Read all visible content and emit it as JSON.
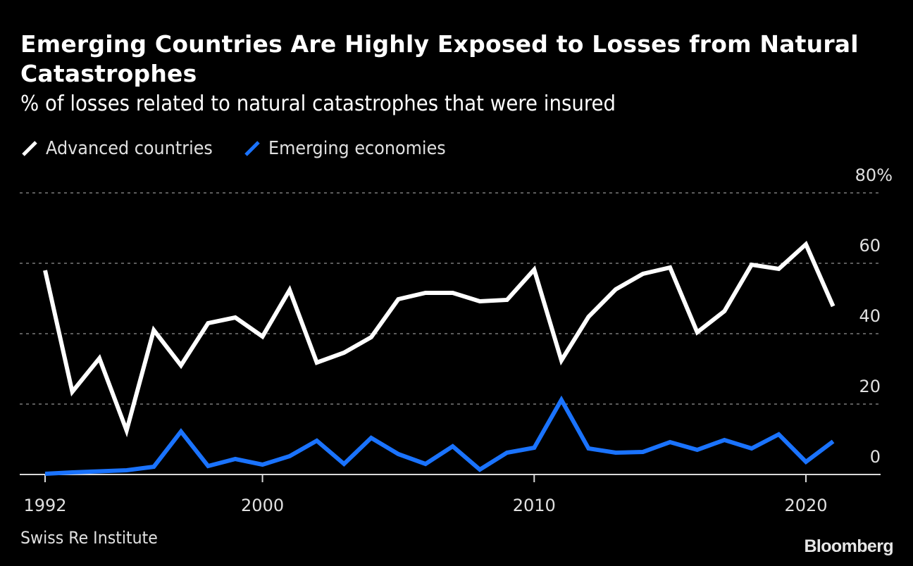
{
  "header": {
    "title": "Emerging Countries Are Highly Exposed to Losses from Natural Catastrophes",
    "subtitle": "% of losses related to natural catastrophes that were insured"
  },
  "legend": [
    {
      "label": "Advanced countries",
      "color": "#ffffff"
    },
    {
      "label": "Emerging economies",
      "color": "#1a73ff"
    }
  ],
  "footer": {
    "source": "Swiss Re Institute",
    "brand": "Bloomberg"
  },
  "chart_data": {
    "type": "line",
    "title": "Emerging Countries Are Highly Exposed to Losses from Natural Catastrophes",
    "subtitle": "% of losses related to natural catastrophes that were insured",
    "xlabel": "",
    "ylabel": "",
    "x": [
      1992,
      1993,
      1994,
      1995,
      1996,
      1997,
      1998,
      1999,
      2000,
      2001,
      2002,
      2003,
      2004,
      2005,
      2006,
      2007,
      2008,
      2009,
      2010,
      2011,
      2012,
      2013,
      2014,
      2015,
      2016,
      2017,
      2018,
      2019,
      2020,
      2021
    ],
    "series": [
      {
        "name": "Advanced countries",
        "color": "#ffffff",
        "values": [
          58,
          23.5,
          33,
          12.5,
          41,
          31,
          43,
          44.6,
          39.2,
          52.4,
          31.8,
          34.6,
          39,
          49.8,
          51.6,
          51.6,
          49.2,
          49.6,
          58.2,
          32.4,
          44.8,
          52.6,
          57,
          58.8,
          40.4,
          46.4,
          59.6,
          58.4,
          65.4,
          47.8
        ]
      },
      {
        "name": "Emerging economies",
        "color": "#1a73ff",
        "values": [
          0.2,
          0.6,
          0.9,
          1.2,
          2.2,
          12.2,
          2.4,
          4.4,
          2.8,
          5.2,
          9.6,
          3,
          10.4,
          5.8,
          3,
          8,
          1.4,
          6.2,
          7.6,
          21.2,
          7.4,
          6.2,
          6.4,
          9.2,
          7,
          9.8,
          7.4,
          11.4,
          3.6,
          9.4
        ]
      }
    ],
    "x_ticks": [
      1992,
      2000,
      2010,
      2020
    ],
    "x_tick_labels": [
      "1992",
      "2000",
      "2010",
      "2020"
    ],
    "xlim": [
      1992,
      2021
    ],
    "y_ticks": [
      0,
      20,
      40,
      60,
      80
    ],
    "y_tick_labels": [
      "0",
      "20",
      "40",
      "60",
      "80%"
    ],
    "ylim": [
      0,
      80
    ],
    "grid": true,
    "legend_position": "top-left",
    "y_axis_side": "right"
  }
}
